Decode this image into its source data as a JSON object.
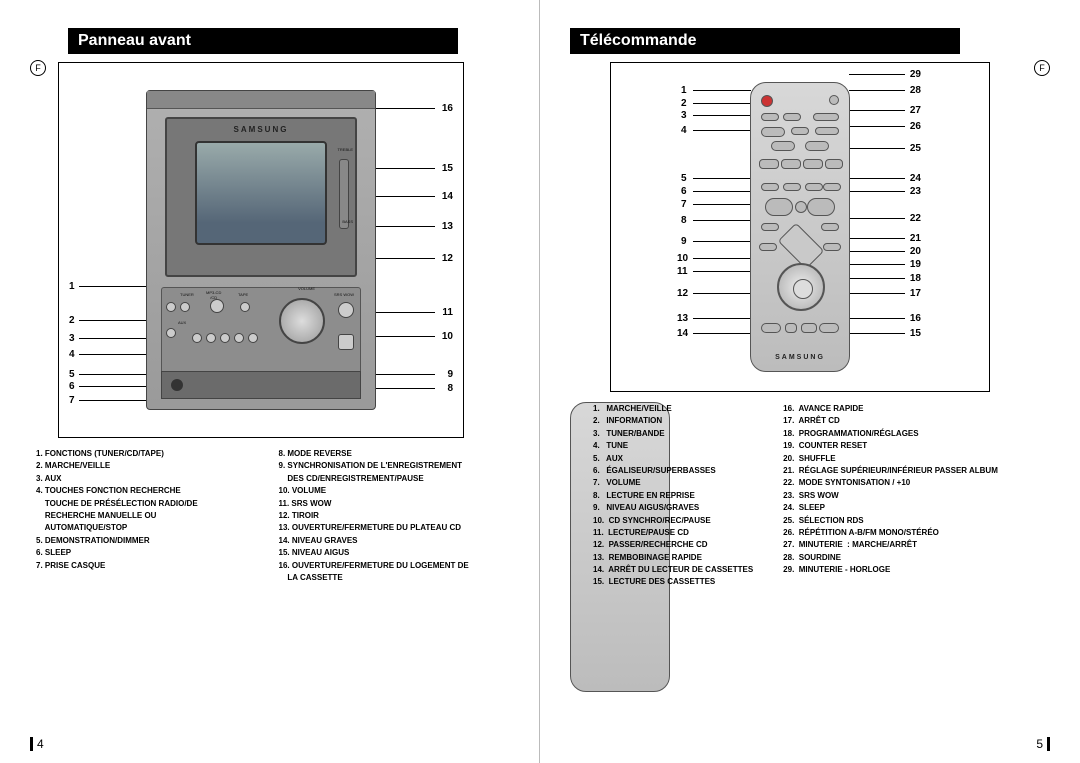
{
  "lang_marker": "F",
  "left": {
    "title": "Panneau avant",
    "page_number": "4",
    "callouts_left": [
      "1",
      "2",
      "3",
      "4",
      "5",
      "6",
      "7"
    ],
    "callouts_right": [
      "16",
      "15",
      "14",
      "13",
      "12",
      "11",
      "10",
      "9",
      "8"
    ],
    "legend_col1": [
      "1. FONCTIONS (TUNER/CD/TAPE)",
      "2. MARCHE/VEILLE",
      "3. AUX",
      "4. TOUCHES FONCTION RECHERCHE",
      "    TOUCHE DE PRÉSÉLECTION RADIO/DE",
      "    RECHERCHE MANUELLE OU",
      "    AUTOMATIQUE/STOP",
      "5. DEMONSTRATION/DIMMER",
      "6. SLEEP",
      "7. PRISE CASQUE"
    ],
    "legend_col2": [
      "8. MODE REVERSE",
      "9. SYNCHRONISATION DE L'ENREGISTREMENT",
      "    DES CD/ENREGISTREMENT/PAUSE",
      "10. VOLUME",
      "11. SRS WOW",
      "12. TIROIR",
      "13. OUVERTURE/FERMETURE DU PLATEAU CD",
      "14. NIVEAU GRAVES",
      "15. NIVEAU AIGUS",
      "16. OUVERTURE/FERMETURE DU LOGEMENT DE",
      "    LA CASSETTE"
    ]
  },
  "right": {
    "title": "Télécommande",
    "page_number": "5",
    "callouts_left": [
      "1",
      "2",
      "3",
      "4",
      "5",
      "6",
      "7",
      "8",
      "9",
      "10",
      "11",
      "12",
      "13",
      "14"
    ],
    "callouts_right": [
      "29",
      "28",
      "27",
      "26",
      "25",
      "24",
      "23",
      "22",
      "21",
      "20",
      "19",
      "18",
      "17",
      "16",
      "15"
    ],
    "legend_col1": [
      "1.   MARCHE/VEILLE",
      "2.   INFORMATION",
      "3.   TUNER/BANDE",
      "4.   TUNE",
      "5.   AUX",
      "6.   ÉGALISEUR/SUPERBASSES",
      "7.   VOLUME",
      "8.   LECTURE EN REPRISE",
      "9.   NIVEAU AIGUS/GRAVES",
      "10.  CD SYNCHRO/REC/PAUSE",
      "11.  LECTURE/PAUSE CD",
      "12.  PASSER/RECHERCHE CD",
      "13.  REMBOBINAGE RAPIDE",
      "14.  ARRÊT DU LECTEUR DE CASSETTES",
      "15.  LECTURE DES CASSETTES"
    ],
    "legend_col2": [
      "16.  AVANCE RAPIDE",
      "17.  ARRÊT CD",
      "18.  PROGRAMMATION/RÉGLAGES",
      "19.  COUNTER RESET",
      "20.  SHUFFLE",
      "21.  RÉGLAGE SUPÉRIEUR/INFÉRIEUR PASSER ALBUM",
      "22.  MODE SYNTONISATION / +10",
      "23.  SRS WOW",
      "24.  SLEEP",
      "25.  SÉLECTION RDS",
      "26.  RÉPÉTITION A-B/FM MONO/STÉRÉO",
      "27.  MINUTERIE  : MARCHE/ARRÊT",
      "28.  SOURDINE",
      "29.  MINUTERIE - HORLOGE"
    ]
  },
  "device_labels": {
    "brand": "SAMSUNG",
    "tuner": "TUNER",
    "cd": "MP3-CD\n/CD",
    "tape": "TAPE",
    "aux": "AUX",
    "vol": "VOLUME",
    "srs": "SRS WOW",
    "treble": "TREBLE",
    "bass": "BASS"
  },
  "remote_labels": {
    "brand": "SAMSUNG"
  },
  "colors": {
    "heading_bg": "#000000",
    "heading_fg": "#ffffff",
    "border": "#000000",
    "device_body": "#a0a0a0",
    "remote_body": "#c8c8c8"
  }
}
